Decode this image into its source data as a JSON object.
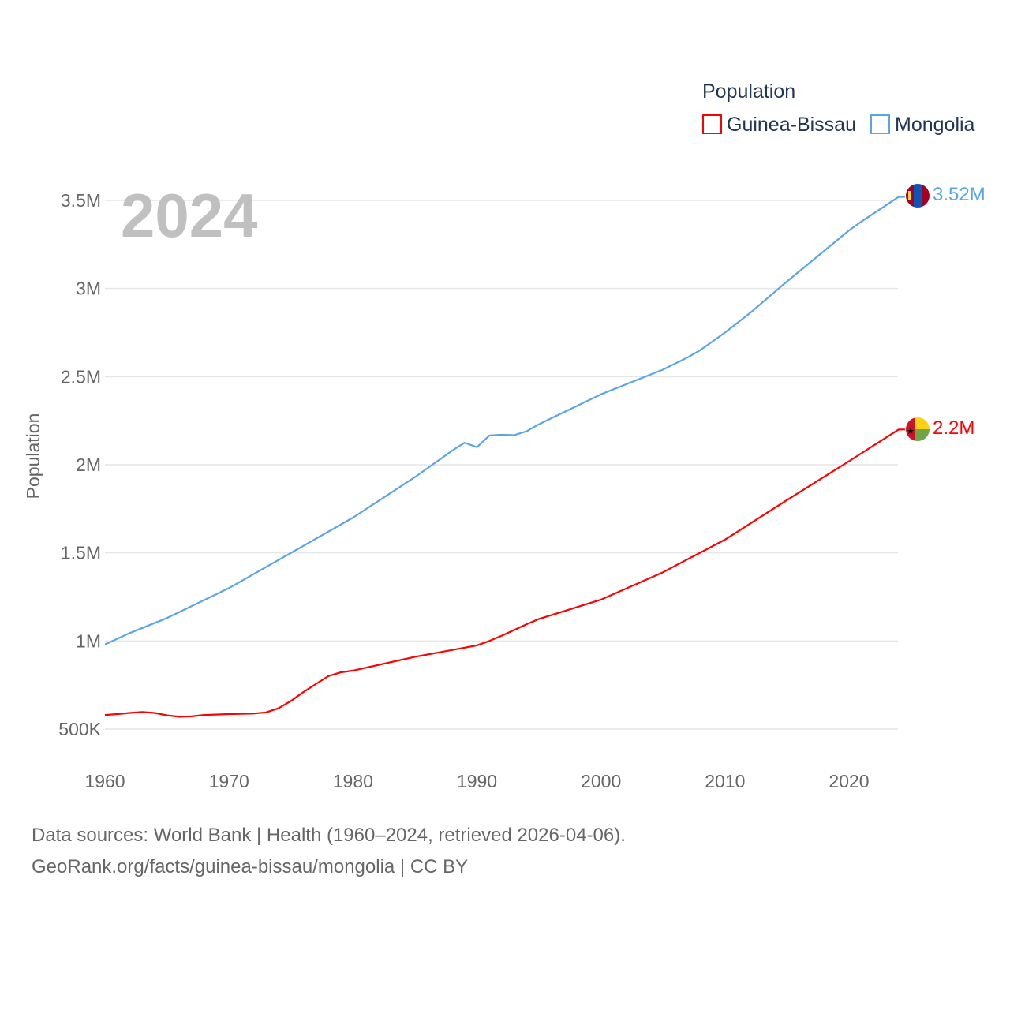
{
  "chart_data": {
    "type": "line",
    "title": "",
    "xlabel": "",
    "ylabel": "Population",
    "year_label": "2024",
    "xlim": [
      1960,
      2024
    ],
    "ylim": [
      500000,
      3500000
    ],
    "x_ticks": [
      1960,
      1970,
      1980,
      1990,
      2000,
      2010,
      2020
    ],
    "x_tick_labels": [
      "1960",
      "1970",
      "1980",
      "1990",
      "2000",
      "2010",
      "2020"
    ],
    "y_ticks": [
      500000,
      1000000,
      1500000,
      2000000,
      2500000,
      3000000,
      3500000
    ],
    "y_tick_labels": [
      "500K",
      "1M",
      "1.5M",
      "2M",
      "2.5M",
      "3M",
      "3.5M"
    ],
    "grid": true,
    "legend": {
      "title": "Population",
      "placement": "top-right"
    },
    "series": [
      {
        "name": "Guinea-Bissau",
        "color": "#ff0000",
        "end_label": "2.2M",
        "flag": "guinea-bissau-flag",
        "points": [
          [
            1960,
            580000
          ],
          [
            1961,
            585000
          ],
          [
            1962,
            592000
          ],
          [
            1963,
            597000
          ],
          [
            1964,
            592000
          ],
          [
            1965,
            578000
          ],
          [
            1966,
            570000
          ],
          [
            1967,
            572000
          ],
          [
            1968,
            580000
          ],
          [
            1970,
            585000
          ],
          [
            1972,
            588000
          ],
          [
            1973,
            595000
          ],
          [
            1974,
            618000
          ],
          [
            1975,
            660000
          ],
          [
            1976,
            710000
          ],
          [
            1977,
            755000
          ],
          [
            1978,
            800000
          ],
          [
            1979,
            822000
          ],
          [
            1980,
            832000
          ],
          [
            1985,
            910000
          ],
          [
            1990,
            975000
          ],
          [
            1991,
            1000000
          ],
          [
            1992,
            1030000
          ],
          [
            1994,
            1095000
          ],
          [
            1995,
            1125000
          ],
          [
            2000,
            1235000
          ],
          [
            2005,
            1390000
          ],
          [
            2010,
            1575000
          ],
          [
            2015,
            1800000
          ],
          [
            2020,
            2020000
          ],
          [
            2024,
            2200000
          ]
        ]
      },
      {
        "name": "Mongolia",
        "color": "#5aa5ea",
        "end_label": "3.52M",
        "flag": "mongolia-flag",
        "points": [
          [
            1960,
            980000
          ],
          [
            1962,
            1045000
          ],
          [
            1965,
            1130000
          ],
          [
            1970,
            1300000
          ],
          [
            1975,
            1500000
          ],
          [
            1980,
            1700000
          ],
          [
            1985,
            1930000
          ],
          [
            1988,
            2080000
          ],
          [
            1989,
            2125000
          ],
          [
            1990,
            2100000
          ],
          [
            1991,
            2166000
          ],
          [
            1992,
            2170000
          ],
          [
            1993,
            2168000
          ],
          [
            1994,
            2190000
          ],
          [
            1995,
            2230000
          ],
          [
            2000,
            2400000
          ],
          [
            2005,
            2540000
          ],
          [
            2007,
            2610000
          ],
          [
            2008,
            2650000
          ],
          [
            2010,
            2750000
          ],
          [
            2012,
            2860000
          ],
          [
            2015,
            3040000
          ],
          [
            2020,
            3330000
          ],
          [
            2021,
            3380000
          ],
          [
            2024,
            3520000
          ]
        ]
      }
    ]
  },
  "footer": {
    "line1": "Data sources: World Bank | Health (1960–2024, retrieved 2026-04-06).",
    "line2": "GeoRank.org/facts/guinea-bissau/mongolia | CC BY"
  }
}
